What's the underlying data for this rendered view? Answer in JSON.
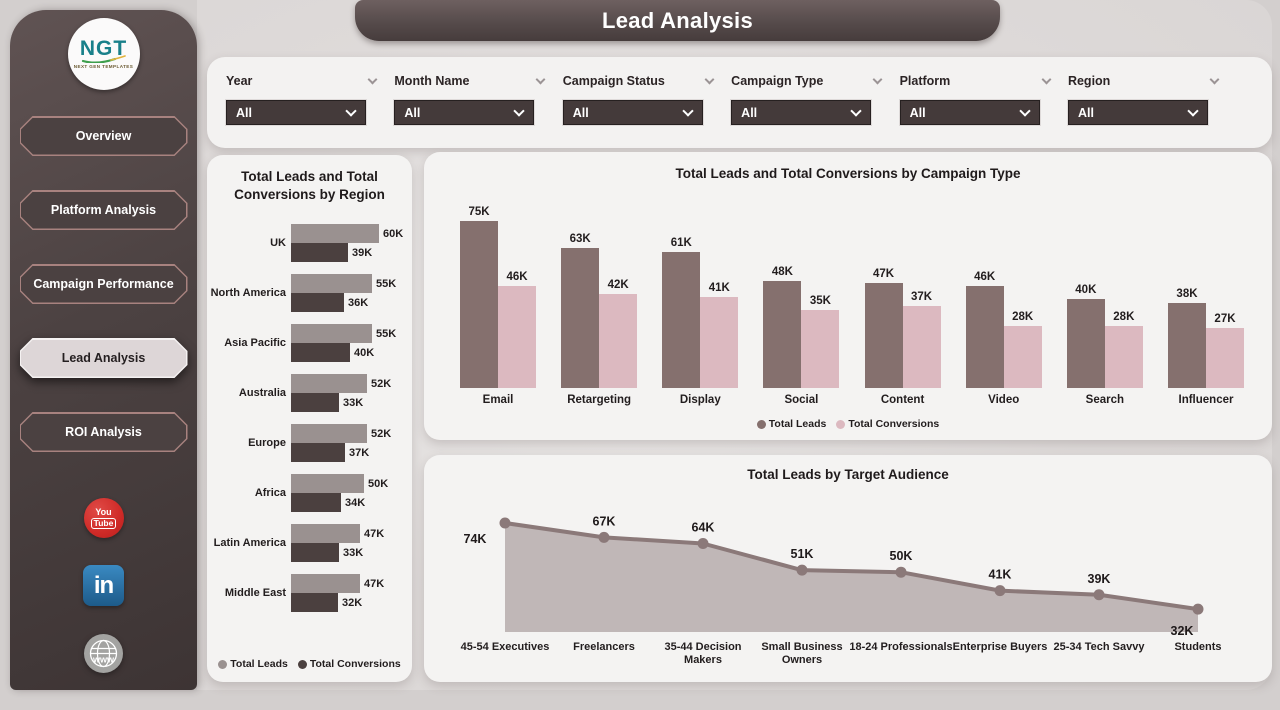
{
  "page": {
    "title": "Lead Analysis"
  },
  "sidebar": {
    "logo": {
      "text": "NGT",
      "subtext": "NEXT GEN TEMPLATES"
    },
    "items": [
      {
        "label": "Overview",
        "active": false
      },
      {
        "label": "Platform Analysis",
        "active": false
      },
      {
        "label": "Campaign Performance",
        "active": false
      },
      {
        "label": "Lead Analysis",
        "active": true
      },
      {
        "label": "ROI Analysis",
        "active": false
      }
    ],
    "social": {
      "youtube": [
        "You",
        "Tube"
      ],
      "linkedin": "in",
      "website": "www"
    }
  },
  "filters": [
    {
      "label": "Year",
      "value": "All"
    },
    {
      "label": "Month Name",
      "value": "All"
    },
    {
      "label": "Campaign Status",
      "value": "All"
    },
    {
      "label": "Campaign Type",
      "value": "All"
    },
    {
      "label": "Platform",
      "value": "All"
    },
    {
      "label": "Region",
      "value": "All"
    }
  ],
  "chart_data": [
    {
      "type": "bar",
      "orientation": "horizontal",
      "title": "Total Leads and Total Conversions by Region",
      "categories": [
        "UK",
        "North America",
        "Asia Pacific",
        "Australia",
        "Europe",
        "Africa",
        "Latin America",
        "Middle East"
      ],
      "series": [
        {
          "name": "Total Leads",
          "color": "#9a9190",
          "values": [
            60,
            55,
            55,
            52,
            52,
            50,
            47,
            47
          ]
        },
        {
          "name": "Total Conversions",
          "color": "#4b403f",
          "values": [
            39,
            36,
            40,
            33,
            37,
            34,
            33,
            32
          ]
        }
      ],
      "unit": "K",
      "xlim": [
        0,
        65
      ],
      "legend_position": "bottom",
      "grid": false
    },
    {
      "type": "bar",
      "orientation": "vertical",
      "title": "Total Leads and Total Conversions by Campaign Type",
      "categories": [
        "Email",
        "Retargeting",
        "Display",
        "Social",
        "Content",
        "Video",
        "Search",
        "Influencer"
      ],
      "series": [
        {
          "name": "Total Leads",
          "color": "#85706e",
          "values": [
            75,
            63,
            61,
            48,
            47,
            46,
            40,
            38
          ]
        },
        {
          "name": "Total Conversions",
          "color": "#dcb9c0",
          "values": [
            46,
            42,
            41,
            35,
            37,
            28,
            28,
            27
          ]
        }
      ],
      "unit": "K",
      "ylim": [
        0,
        80
      ],
      "legend_position": "bottom",
      "grid": false
    },
    {
      "type": "area",
      "title": "Total Leads by Target Audience",
      "categories": [
        "45-54 Executives",
        "Freelancers",
        "35-44 Decision Makers",
        "Small Business Owners",
        "18-24 Professionals",
        "Enterprise Buyers",
        "25-34 Tech Savvy",
        "Students"
      ],
      "values": [
        74,
        67,
        64,
        51,
        50,
        41,
        39,
        32
      ],
      "unit": "K",
      "line_color": "#8b7979",
      "fill_color": "#b6acad",
      "ylim": [
        0,
        80
      ],
      "grid": false
    }
  ]
}
